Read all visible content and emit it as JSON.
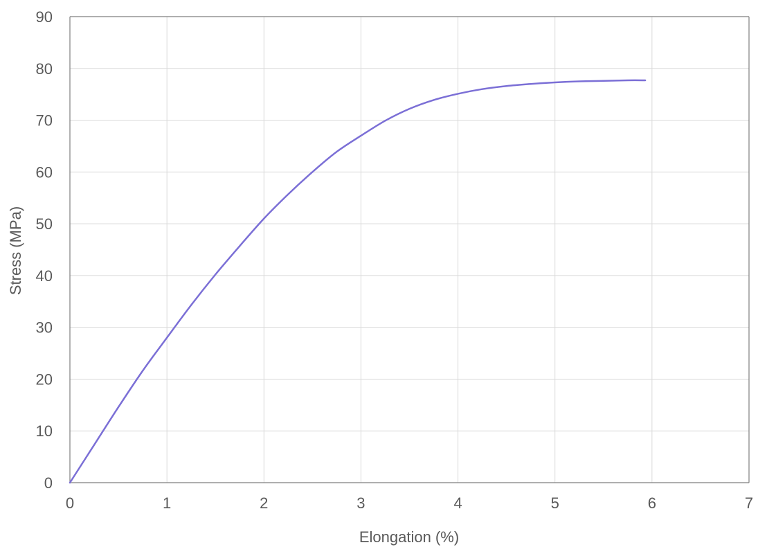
{
  "chart_data": {
    "type": "line",
    "title": "",
    "xlabel": "Elongation (%)",
    "ylabel": "Stress (MPa)",
    "xlim": [
      0,
      7
    ],
    "ylim": [
      0,
      90
    ],
    "x_ticks": [
      "0",
      "1",
      "2",
      "3",
      "4",
      "5",
      "6",
      "7"
    ],
    "y_ticks": [
      "0",
      "10",
      "20",
      "30",
      "40",
      "50",
      "60",
      "70",
      "80",
      "90"
    ],
    "grid": true,
    "legend": "none",
    "series": [
      {
        "color": "#7b6fd6",
        "x": [
          0,
          0.25,
          0.5,
          0.75,
          1.0,
          1.25,
          1.5,
          1.75,
          2.0,
          2.25,
          2.5,
          2.75,
          3.0,
          3.25,
          3.5,
          3.75,
          4.0,
          4.25,
          4.5,
          4.75,
          5.0,
          5.25,
          5.5,
          5.75,
          5.93
        ],
        "y": [
          0,
          7.3,
          14.6,
          21.6,
          28.0,
          34.3,
          40.2,
          45.7,
          51.0,
          55.7,
          60.0,
          63.9,
          67.0,
          69.9,
          72.2,
          73.9,
          75.1,
          76.0,
          76.6,
          77.0,
          77.3,
          77.5,
          77.6,
          77.7,
          77.7
        ]
      }
    ]
  }
}
